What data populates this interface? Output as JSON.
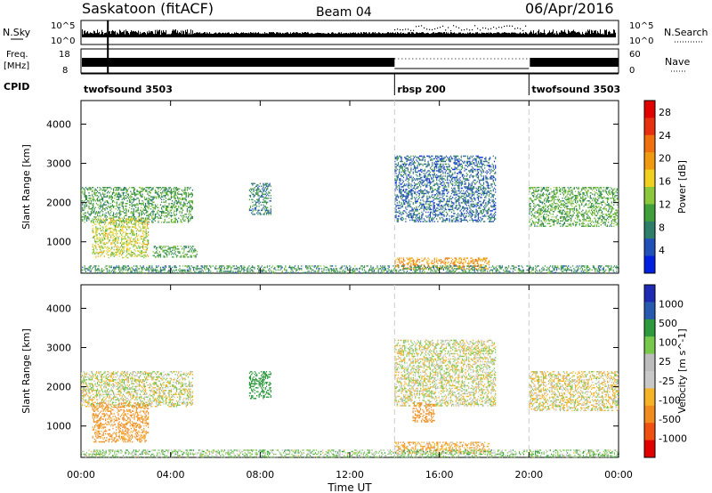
{
  "header": {
    "station": "Saskatoon (fitACF)",
    "beam": "Beam 04",
    "date": "06/Apr/2016"
  },
  "noise_panel": {
    "left_label": "N.Sky",
    "right_label": "N.Search",
    "tick_high": "10^5",
    "tick_low": "10^0"
  },
  "freq_panel": {
    "left_label_1": "Freq.",
    "left_label_2": "[MHz]",
    "left_tick_high": "18",
    "left_tick_low": "8",
    "right_tick_high": "60",
    "right_tick_low": "0",
    "right_label": "Nave"
  },
  "cpid_panel": {
    "label": "CPID",
    "segments": [
      {
        "name": "twofsound 3503",
        "start_hour": 0.0,
        "end_hour": 14.0
      },
      {
        "name": "rbsp 200",
        "start_hour": 14.0,
        "end_hour": 20.0
      },
      {
        "name": "twofsound 3503",
        "start_hour": 20.0,
        "end_hour": 24.0
      }
    ]
  },
  "x_axis": {
    "label": "Time UT",
    "ticks": [
      "00:00",
      "04:00",
      "08:00",
      "12:00",
      "16:00",
      "20:00",
      "00:00"
    ]
  },
  "colors": {
    "power_scale": [
      "#0020e0",
      "#2050b8",
      "#2e7e6a",
      "#42a03c",
      "#8cc83c",
      "#f0d020",
      "#f09a10",
      "#f07010",
      "#e83010",
      "#e00000"
    ],
    "velocity_scale": [
      "#e00000",
      "#f05010",
      "#f08c1e",
      "#f5b428",
      "#c8c8c8",
      "#bcbcbc",
      "#78c84c",
      "#2e9a3e",
      "#285aaf",
      "#1e2ab4"
    ],
    "gap_line": "#cccccc"
  },
  "chart_data": [
    {
      "type": "heatmap",
      "title": "Power",
      "xlabel": "Time UT",
      "ylabel": "Slant Range [km]",
      "xlim_hours": [
        0,
        24
      ],
      "ylim": [
        200,
        4600
      ],
      "y_ticks": [
        1000,
        2000,
        3000,
        4000
      ],
      "colorbar": {
        "label": "Power [dB]",
        "range": [
          0,
          30
        ],
        "ticks": [
          4,
          8,
          12,
          16,
          20,
          24,
          28
        ]
      },
      "regions": [
        {
          "t0": 0.0,
          "t1": 5.0,
          "r0": 1500,
          "r1": 2400,
          "value": 10
        },
        {
          "t0": 0.5,
          "t1": 3.0,
          "r0": 600,
          "r1": 1600,
          "value": 15
        },
        {
          "t0": 3.2,
          "t1": 5.2,
          "r0": 600,
          "r1": 900,
          "value": 10
        },
        {
          "t0": 7.5,
          "t1": 8.5,
          "r0": 1700,
          "r1": 2500,
          "value": 8
        },
        {
          "t0": 14.0,
          "t1": 18.5,
          "r0": 1500,
          "r1": 3200,
          "value": 6
        },
        {
          "t0": 14.0,
          "t1": 18.2,
          "r0": 300,
          "r1": 600,
          "value": 20
        },
        {
          "t0": 20.0,
          "t1": 24.0,
          "r0": 1400,
          "r1": 2400,
          "value": 11
        },
        {
          "t0": 0.0,
          "t1": 24.0,
          "r0": 200,
          "r1": 400,
          "value": 9
        }
      ]
    },
    {
      "type": "heatmap",
      "title": "Velocity",
      "xlabel": "Time UT",
      "ylabel": "Slant Range [km]",
      "xlim_hours": [
        0,
        24
      ],
      "ylim": [
        200,
        4600
      ],
      "y_ticks": [
        1000,
        2000,
        3000,
        4000
      ],
      "colorbar": {
        "label": "Velocity [m s^-1]",
        "ticks": [
          1000,
          500,
          100,
          25,
          -25,
          -100,
          -500,
          -1000
        ]
      },
      "regions": [
        {
          "t0": 0.0,
          "t1": 5.0,
          "r0": 1500,
          "r1": 2400,
          "value": 0
        },
        {
          "t0": 0.5,
          "t1": 3.0,
          "r0": 600,
          "r1": 1600,
          "value": -150
        },
        {
          "t0": 7.5,
          "t1": 8.5,
          "r0": 1700,
          "r1": 2400,
          "value": 200
        },
        {
          "t0": 14.0,
          "t1": 18.5,
          "r0": 1500,
          "r1": 3200,
          "value": 0
        },
        {
          "t0": 14.8,
          "t1": 15.8,
          "r0": 1100,
          "r1": 1600,
          "value": -300
        },
        {
          "t0": 14.0,
          "t1": 18.2,
          "r0": 300,
          "r1": 600,
          "value": -80
        },
        {
          "t0": 20.0,
          "t1": 24.0,
          "r0": 1400,
          "r1": 2400,
          "value": -20
        },
        {
          "t0": 0.0,
          "t1": 24.0,
          "r0": 200,
          "r1": 400,
          "value": 50
        }
      ]
    }
  ]
}
